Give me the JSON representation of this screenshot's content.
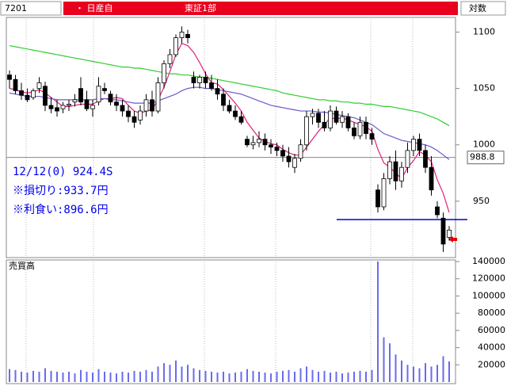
{
  "header": {
    "code": "7201",
    "name": "・ 日産自",
    "market": "東証1部",
    "mode": "対数"
  },
  "chart_data": [
    {
      "type": "candlestick",
      "ylim": [
        900,
        1113
      ],
      "yticks": [
        950,
        1000,
        1050,
        1100
      ],
      "up_color": "#ffffff",
      "down_color": "#000000",
      "annotations": [
        "12/12(0) 924.4S",
        "※損切り:933.7円",
        "※利食い:896.6円"
      ],
      "reference_lines": [
        {
          "value": 988.8,
          "color": "#888888"
        },
        {
          "value": 933.7,
          "color": "#0000cc"
        }
      ],
      "open": [
        1062,
        1058,
        1048,
        1044,
        1042,
        1050,
        1052,
        1035,
        1033,
        1032,
        1035,
        1038,
        1050,
        1040,
        1032,
        1038,
        1050,
        1045,
        1038,
        1035,
        1030,
        1025,
        1022,
        1030,
        1040,
        1030,
        1055,
        1072,
        1080,
        1095,
        1098,
        1060,
        1055,
        1060,
        1055,
        1050,
        1045,
        1035,
        1030,
        1025,
        1005,
        1000,
        1002,
        1005,
        1000,
        998,
        995,
        990,
        980,
        988,
        1000,
        1025,
        1028,
        1020,
        1015,
        1030,
        1020,
        1025,
        1015,
        1008,
        1020,
        1010,
        960,
        945,
        970,
        985,
        968,
        980,
        995,
        1005,
        995,
        980,
        945,
        935,
        918
      ],
      "high": [
        1066,
        1062,
        1055,
        1050,
        1050,
        1060,
        1056,
        1042,
        1040,
        1038,
        1040,
        1045,
        1060,
        1048,
        1040,
        1060,
        1055,
        1048,
        1045,
        1040,
        1035,
        1030,
        1035,
        1045,
        1048,
        1060,
        1075,
        1085,
        1098,
        1105,
        1102,
        1065,
        1062,
        1065,
        1062,
        1058,
        1050,
        1040,
        1035,
        1030,
        1008,
        1008,
        1012,
        1010,
        1005,
        1002,
        1000,
        998,
        992,
        1005,
        1030,
        1032,
        1032,
        1030,
        1035,
        1034,
        1030,
        1028,
        1020,
        1025,
        1025,
        1015,
        965,
        975,
        990,
        995,
        985,
        1002,
        1008,
        1010,
        1000,
        990,
        950,
        940,
        928
      ],
      "low": [
        1050,
        1045,
        1040,
        1038,
        1040,
        1046,
        1030,
        1028,
        1025,
        1028,
        1030,
        1034,
        1035,
        1030,
        1025,
        1035,
        1045,
        1035,
        1030,
        1025,
        1020,
        1015,
        1018,
        1025,
        1025,
        1028,
        1050,
        1068,
        1078,
        1090,
        1090,
        1050,
        1050,
        1050,
        1048,
        1040,
        1030,
        1028,
        1022,
        1018,
        998,
        996,
        998,
        995,
        992,
        990,
        985,
        980,
        975,
        985,
        995,
        1018,
        1015,
        1012,
        1012,
        1018,
        1015,
        1012,
        1005,
        1005,
        1005,
        1000,
        940,
        942,
        965,
        960,
        962,
        975,
        990,
        990,
        975,
        955,
        935,
        905,
        915
      ],
      "close": [
        1058,
        1048,
        1044,
        1040,
        1048,
        1055,
        1035,
        1032,
        1030,
        1035,
        1036,
        1040,
        1038,
        1032,
        1035,
        1052,
        1048,
        1038,
        1035,
        1030,
        1025,
        1020,
        1030,
        1040,
        1030,
        1055,
        1072,
        1080,
        1095,
        1100,
        1095,
        1055,
        1060,
        1055,
        1050,
        1045,
        1035,
        1030,
        1025,
        1020,
        1000,
        1002,
        1005,
        1000,
        998,
        995,
        990,
        985,
        988,
        1000,
        1025,
        1028,
        1020,
        1015,
        1030,
        1020,
        1025,
        1015,
        1008,
        1020,
        1010,
        1005,
        945,
        970,
        985,
        968,
        980,
        995,
        1005,
        995,
        980,
        960,
        938,
        912,
        924.4
      ],
      "lines": [
        {
          "color": "#e0207a",
          "values": [
            1050,
            1049,
            1047,
            1046,
            1047,
            1049,
            1046,
            1042,
            1038,
            1034,
            1034,
            1035,
            1036,
            1036,
            1036,
            1039,
            1041,
            1041,
            1042,
            1041,
            1035,
            1030,
            1028,
            1030,
            1031,
            1040,
            1051,
            1065,
            1080,
            1090,
            1088,
            1082,
            1073,
            1063,
            1055,
            1054,
            1049,
            1043,
            1037,
            1030,
            1020,
            1013,
            1006,
            1003,
            1001,
            1000,
            996,
            993,
            991,
            991,
            998,
            1005,
            1012,
            1018,
            1024,
            1023,
            1024,
            1022,
            1020,
            1018,
            1016,
            1012,
            996,
            984,
            980,
            975,
            970,
            980,
            986,
            994,
            991,
            985,
            969,
            957,
            940
          ]
        },
        {
          "color": "#6a5acd",
          "values": [
            1046,
            1045,
            1044,
            1043,
            1043,
            1043,
            1042,
            1041,
            1040,
            1040,
            1040,
            1040,
            1040,
            1040,
            1040,
            1041,
            1041,
            1040,
            1040,
            1039,
            1038,
            1037,
            1037,
            1037,
            1037,
            1039,
            1041,
            1043,
            1045,
            1048,
            1050,
            1051,
            1051,
            1050,
            1050,
            1049,
            1048,
            1047,
            1046,
            1045,
            1043,
            1041,
            1039,
            1037,
            1035,
            1034,
            1033,
            1032,
            1031,
            1030,
            1030,
            1030,
            1029,
            1029,
            1028,
            1027,
            1026,
            1025,
            1024,
            1022,
            1020,
            1018,
            1014,
            1010,
            1008,
            1006,
            1004,
            1003,
            1002,
            1001,
            1000,
            998,
            995,
            991,
            987
          ]
        },
        {
          "color": "#33cc33",
          "values": [
            1088,
            1087,
            1086,
            1085,
            1084,
            1083,
            1082,
            1081,
            1080,
            1079,
            1078,
            1077,
            1076,
            1075,
            1074,
            1073,
            1072,
            1071,
            1070,
            1069,
            1069,
            1068,
            1068,
            1067,
            1066,
            1065,
            1064,
            1063,
            1063,
            1062,
            1062,
            1061,
            1060,
            1060,
            1059,
            1058,
            1057,
            1056,
            1055,
            1054,
            1053,
            1052,
            1051,
            1050,
            1049,
            1048,
            1046,
            1045,
            1044,
            1043,
            1042,
            1041,
            1040,
            1040,
            1039,
            1039,
            1038,
            1038,
            1037,
            1037,
            1036,
            1036,
            1035,
            1034,
            1034,
            1033,
            1032,
            1031,
            1030,
            1029,
            1027,
            1025,
            1023,
            1020,
            1017
          ]
        }
      ]
    },
    {
      "type": "bar",
      "title": "売買高",
      "color": "#6a6af0",
      "ylim": [
        0,
        140000
      ],
      "yticks": [
        20000,
        40000,
        60000,
        80000,
        100000,
        120000,
        140000
      ],
      "values": [
        15000,
        14000,
        12000,
        11000,
        13000,
        12000,
        16000,
        13000,
        12000,
        11000,
        12000,
        10000,
        14000,
        12000,
        11000,
        15000,
        12000,
        11000,
        10000,
        12000,
        11000,
        13000,
        12000,
        14000,
        12000,
        18000,
        22000,
        20000,
        25000,
        18000,
        20000,
        16000,
        14000,
        13000,
        12000,
        11000,
        12000,
        10000,
        11000,
        12000,
        15000,
        13000,
        12000,
        11000,
        10000,
        12000,
        13000,
        14000,
        12000,
        16000,
        18000,
        14000,
        12000,
        13000,
        11000,
        12000,
        10000,
        11000,
        12000,
        13000,
        12000,
        14000,
        140000,
        52000,
        45000,
        32000,
        25000,
        20000,
        18000,
        16000,
        22000,
        18000,
        20000,
        30000,
        24000
      ]
    }
  ]
}
